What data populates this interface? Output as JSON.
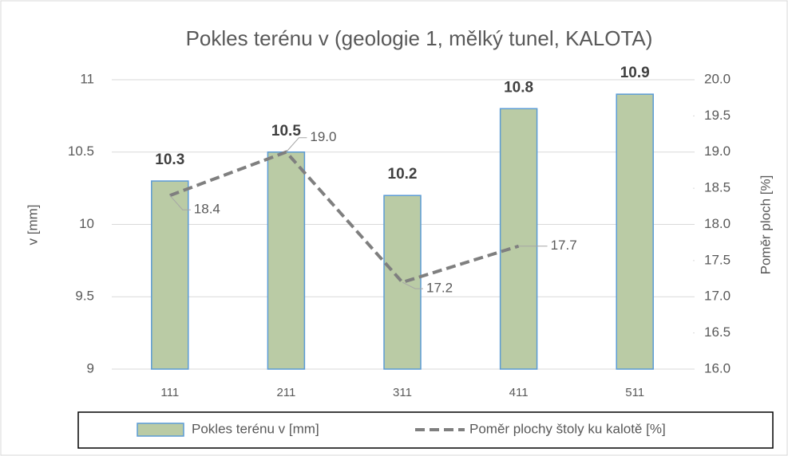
{
  "chart_data": {
    "type": "bar-line",
    "title": "Pokles terénu v (geologie 1, mělký tunel, KALOTA)",
    "ylabel": "v [mm]",
    "y2label": "Poměr ploch [%]",
    "categories": [
      "111",
      "211",
      "311",
      "411",
      "511"
    ],
    "series": [
      {
        "name": "Pokles terénu v [mm]",
        "type": "bar",
        "color": "#bacba5",
        "edge_color": "#5b9bd5",
        "values": [
          10.3,
          10.5,
          10.2,
          10.8,
          10.9
        ]
      },
      {
        "name": "Poměr plochy štoly ku kalotě [%]",
        "type": "line",
        "axis": "y2",
        "color": "#7f7f7f",
        "dashed": true,
        "values": [
          18.4,
          19.0,
          17.2,
          17.7,
          null
        ],
        "value_labels": [
          "18.4",
          "19.0",
          "17.2",
          "17.7",
          null
        ]
      }
    ],
    "ylim": [
      9,
      11
    ],
    "yticks": [
      9,
      9.5,
      10,
      10.5,
      11
    ],
    "y2lim": [
      16,
      20
    ],
    "y2ticks": [
      {
        "value": 16,
        "label": "16.0"
      },
      {
        "value": 16.5,
        "label": "16.5"
      },
      {
        "value": 17,
        "label": "17.0"
      },
      {
        "value": 17.5,
        "label": "17.5"
      },
      {
        "value": 18,
        "label": "18.0"
      },
      {
        "value": 18.5,
        "label": "18.5"
      },
      {
        "value": 19,
        "label": "19.0"
      },
      {
        "value": 19.5,
        "label": "19.5"
      },
      {
        "value": 20,
        "label": "20.0"
      }
    ],
    "grid": true,
    "legend": "bottom"
  }
}
